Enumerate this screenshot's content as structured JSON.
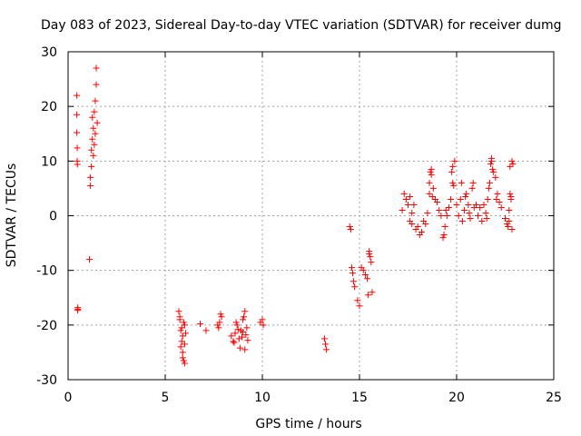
{
  "chart_data": {
    "type": "scatter",
    "title": "Day 083 of 2023, Sidereal Day-to-day VTEC variation (SDTVAR) for receiver dumg",
    "xlabel": "GPS time / hours",
    "ylabel": "SDTVAR / TECUs",
    "xlim": [
      0,
      25
    ],
    "ylim": [
      -30,
      30
    ],
    "xticks": [
      0,
      5,
      10,
      15,
      20,
      25
    ],
    "yticks": [
      -30,
      -20,
      -10,
      0,
      10,
      20,
      30
    ],
    "xtick_labels": [
      "0",
      "5",
      "10",
      "15",
      "20",
      "25"
    ],
    "ytick_labels": [
      "-30",
      "-20",
      "-10",
      "0",
      "10",
      "20",
      "30"
    ],
    "grid": true,
    "marker": "+",
    "marker_color": "#ff0000",
    "clusters": [
      {
        "name": "early-scatter-1",
        "x": [
          0.45,
          0.45,
          0.45,
          0.47,
          0.47,
          0.48,
          0.5,
          0.5,
          0.5
        ],
        "y": [
          22,
          18.5,
          15.2,
          12.4,
          10,
          9.4,
          -16.8,
          -17.1,
          -17.3
        ]
      },
      {
        "name": "early-scatter-2",
        "x": [
          1.1,
          1.15,
          1.15,
          1.2,
          1.2,
          1.25,
          1.25,
          1.3,
          1.3,
          1.35,
          1.35,
          1.4,
          1.4,
          1.45,
          1.45,
          1.5
        ],
        "y": [
          -8,
          5.5,
          7,
          9,
          12,
          14,
          18,
          11,
          16,
          13,
          19,
          15,
          21,
          24,
          27,
          17
        ]
      },
      {
        "name": "morning-band-1",
        "x": [
          5.7,
          5.75,
          5.8,
          5.85,
          5.9,
          5.95,
          6.0,
          5.8,
          5.9,
          6.0,
          5.75,
          5.85,
          5.95,
          6.05,
          6.0,
          5.9
        ],
        "y": [
          -17.5,
          -19,
          -21,
          -23,
          -25,
          -26.5,
          -27,
          -24,
          -22,
          -20,
          -18.5,
          -20.5,
          -19.5,
          -21.5,
          -23.5,
          -26
        ]
      },
      {
        "name": "morning-band-2",
        "x": [
          6.8,
          7.1,
          7.7,
          7.8,
          7.9,
          7.85,
          7.75
        ],
        "y": [
          -19.8,
          -21,
          -20,
          -19.5,
          -18.5,
          -18,
          -20.5
        ]
      },
      {
        "name": "morning-band-3",
        "x": [
          8.4,
          8.5,
          8.6,
          8.7,
          8.8,
          8.9,
          9.0,
          9.1,
          9.2,
          8.55,
          8.75,
          8.95,
          9.15,
          8.65,
          8.85,
          9.05,
          9.25,
          9.0,
          9.1
        ],
        "y": [
          -22,
          -23,
          -21.5,
          -20,
          -22.5,
          -21,
          -19,
          -17.5,
          -20.5,
          -23.2,
          -20.8,
          -22.2,
          -21.8,
          -19.5,
          -24.2,
          -18.5,
          -22.8,
          -21.3,
          -24.5
        ]
      },
      {
        "name": "morning-band-4",
        "x": [
          9.9,
          10.0,
          10.05
        ],
        "y": [
          -19.5,
          -19,
          -20
        ]
      },
      {
        "name": "midday-pair",
        "x": [
          13.2,
          13.25,
          13.3
        ],
        "y": [
          -22.5,
          -23.5,
          -24.5
        ]
      },
      {
        "name": "afternoon-rise",
        "x": [
          14.5,
          14.55,
          14.6,
          14.65,
          14.7,
          14.75,
          14.9,
          15.0,
          15.1,
          15.2,
          15.3,
          15.4,
          15.5,
          15.55,
          15.6,
          15.65,
          15.5,
          15.45
        ],
        "y": [
          -2,
          -2.5,
          -9.5,
          -10.5,
          -12,
          -13,
          -15.5,
          -16.5,
          -9.5,
          -10,
          -10.8,
          -11.5,
          -7,
          -7.5,
          -8.5,
          -14,
          -6.5,
          -14.5
        ]
      },
      {
        "name": "evening-band-1",
        "x": [
          17.2,
          17.4,
          17.6,
          17.8,
          18.0,
          18.2,
          18.4,
          18.6,
          18.8,
          19.0,
          19.2,
          17.3,
          17.5,
          17.7,
          17.9,
          18.1,
          18.3,
          18.5,
          18.7,
          18.9,
          19.1,
          18.6,
          18.65,
          18.7,
          18.75,
          17.6,
          17.7
        ],
        "y": [
          1,
          3,
          -1,
          2,
          -2,
          -3,
          -1.5,
          4,
          5,
          2.5,
          0,
          4,
          2,
          0.5,
          -2.5,
          -3.5,
          -1,
          0.5,
          8.5,
          3,
          1,
          6,
          8,
          7.5,
          3.5,
          3.5,
          -1.5
        ]
      },
      {
        "name": "evening-band-2",
        "x": [
          19.3,
          19.4,
          19.5,
          19.6,
          19.7,
          19.8,
          19.9,
          20.0,
          20.1,
          20.2,
          20.3,
          20.4,
          20.5,
          20.6,
          20.7,
          20.8,
          20.9,
          19.75,
          19.8,
          19.85,
          19.35,
          19.45,
          20.25,
          20.45,
          20.65,
          20.85,
          21.0
        ],
        "y": [
          -4,
          -2,
          0,
          1.5,
          3,
          6,
          10,
          2,
          0,
          3,
          -1,
          1,
          4,
          2,
          -0.5,
          5,
          1.5,
          8,
          9,
          5.5,
          -3.5,
          1,
          6,
          3.5,
          0.5,
          6,
          2
        ]
      },
      {
        "name": "evening-band-3",
        "x": [
          21.1,
          21.2,
          21.3,
          21.4,
          21.5,
          21.6,
          21.7,
          21.8,
          21.9,
          22.0,
          22.1,
          22.2,
          22.3,
          21.75,
          21.8,
          21.85,
          21.65,
          21.55,
          22.05
        ],
        "y": [
          0,
          1.5,
          -1,
          2,
          0.5,
          3,
          6,
          10,
          8,
          7,
          4,
          2.5,
          1.5,
          9.5,
          10.5,
          8.5,
          5,
          -0.5,
          3
        ]
      },
      {
        "name": "late-cluster",
        "x": [
          22.5,
          22.6,
          22.65,
          22.7,
          22.75,
          22.8,
          22.85,
          22.9,
          22.7,
          22.8,
          22.75,
          22.85
        ],
        "y": [
          -0.5,
          -1.5,
          -2,
          1,
          4,
          3.5,
          10,
          9.5,
          -1,
          3,
          9,
          -2.5
        ]
      }
    ]
  }
}
